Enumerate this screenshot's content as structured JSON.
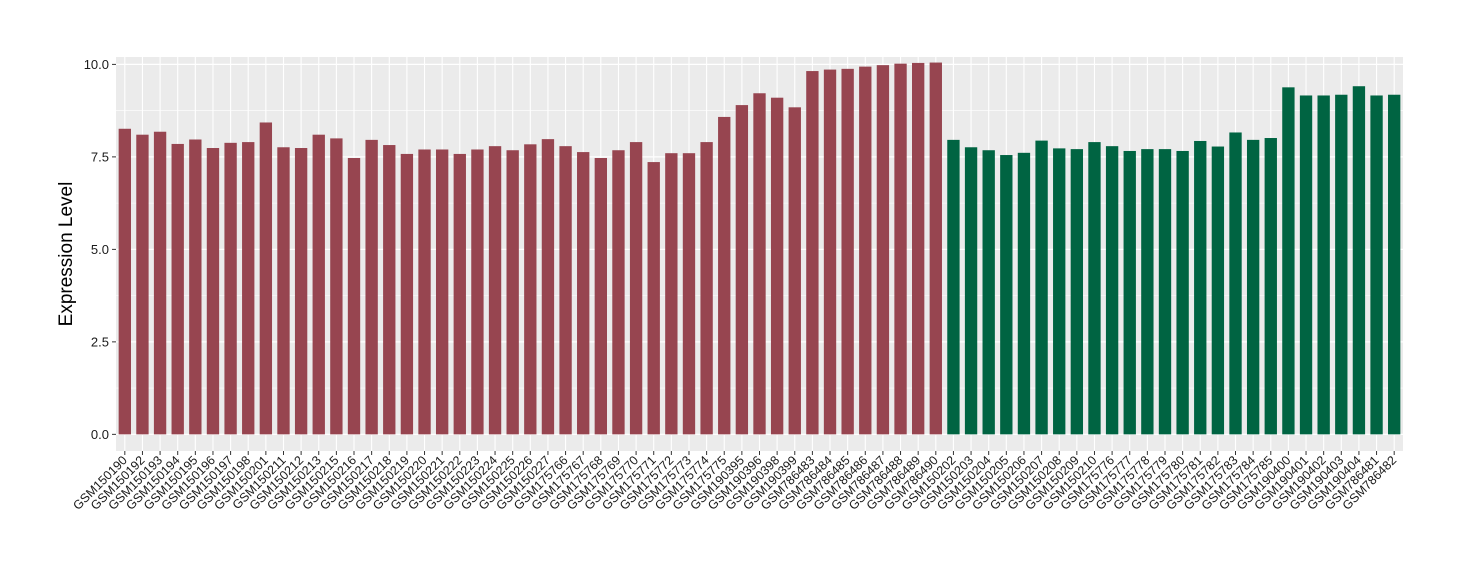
{
  "chart_data": {
    "type": "bar",
    "title": "",
    "xlabel": "",
    "ylabel": "Expression Level",
    "ylim": [
      -0.45,
      10.2
    ],
    "yticks": [
      0.0,
      2.5,
      5.0,
      7.5,
      10.0
    ],
    "ytick_labels": [
      "0.0",
      "2.5",
      "5.0",
      "7.5",
      "10.0"
    ],
    "grid": true,
    "legend": "none",
    "colors": {
      "group1": "#974550",
      "group2": "#006442",
      "panel": "#ebebeb",
      "grid": "#ffffff"
    },
    "categories": [
      "GSM150190",
      "GSM150192",
      "GSM150193",
      "GSM150194",
      "GSM150195",
      "GSM150196",
      "GSM150197",
      "GSM150198",
      "GSM150201",
      "GSM150211",
      "GSM150212",
      "GSM150213",
      "GSM150215",
      "GSM150216",
      "GSM150217",
      "GSM150218",
      "GSM150219",
      "GSM150220",
      "GSM150221",
      "GSM150222",
      "GSM150223",
      "GSM150224",
      "GSM150225",
      "GSM150226",
      "GSM150227",
      "GSM175766",
      "GSM175767",
      "GSM175768",
      "GSM175769",
      "GSM175770",
      "GSM175771",
      "GSM175772",
      "GSM175773",
      "GSM175774",
      "GSM175775",
      "GSM190395",
      "GSM190396",
      "GSM190398",
      "GSM190399",
      "GSM786483",
      "GSM786484",
      "GSM786485",
      "GSM786486",
      "GSM786487",
      "GSM786488",
      "GSM786489",
      "GSM786490",
      "GSM150202",
      "GSM150203",
      "GSM150204",
      "GSM150205",
      "GSM150206",
      "GSM150207",
      "GSM150208",
      "GSM150209",
      "GSM150210",
      "GSM175776",
      "GSM175777",
      "GSM175778",
      "GSM175779",
      "GSM175780",
      "GSM175781",
      "GSM175782",
      "GSM175783",
      "GSM175784",
      "GSM175785",
      "GSM190400",
      "GSM190401",
      "GSM190402",
      "GSM190403",
      "GSM190404",
      "GSM786481",
      "GSM786482"
    ],
    "values": [
      8.26,
      8.1,
      8.18,
      7.85,
      7.97,
      7.74,
      7.88,
      7.9,
      8.43,
      7.76,
      7.74,
      8.1,
      8.0,
      7.47,
      7.96,
      7.82,
      7.58,
      7.7,
      7.7,
      7.58,
      7.7,
      7.79,
      7.68,
      7.84,
      7.98,
      7.79,
      7.63,
      7.47,
      7.68,
      7.9,
      7.36,
      7.6,
      7.6,
      7.9,
      8.58,
      8.9,
      9.22,
      9.1,
      8.84,
      9.82,
      9.86,
      9.88,
      9.94,
      9.98,
      10.02,
      10.04,
      10.05,
      7.96,
      7.76,
      7.68,
      7.55,
      7.61,
      7.94,
      7.73,
      7.71,
      7.9,
      7.79,
      7.66,
      7.71,
      7.71,
      7.66,
      7.93,
      7.78,
      8.16,
      7.96,
      8.01,
      9.38,
      9.16,
      9.16,
      9.18,
      9.41,
      9.16,
      9.18
    ],
    "groups": [
      "group1",
      "group1",
      "group1",
      "group1",
      "group1",
      "group1",
      "group1",
      "group1",
      "group1",
      "group1",
      "group1",
      "group1",
      "group1",
      "group1",
      "group1",
      "group1",
      "group1",
      "group1",
      "group1",
      "group1",
      "group1",
      "group1",
      "group1",
      "group1",
      "group1",
      "group1",
      "group1",
      "group1",
      "group1",
      "group1",
      "group1",
      "group1",
      "group1",
      "group1",
      "group1",
      "group1",
      "group1",
      "group1",
      "group1",
      "group1",
      "group1",
      "group1",
      "group1",
      "group1",
      "group1",
      "group1",
      "group1",
      "group2",
      "group2",
      "group2",
      "group2",
      "group2",
      "group2",
      "group2",
      "group2",
      "group2",
      "group2",
      "group2",
      "group2",
      "group2",
      "group2",
      "group2",
      "group2",
      "group2",
      "group2",
      "group2",
      "group2",
      "group2",
      "group2",
      "group2",
      "group2",
      "group2",
      "group2"
    ]
  }
}
